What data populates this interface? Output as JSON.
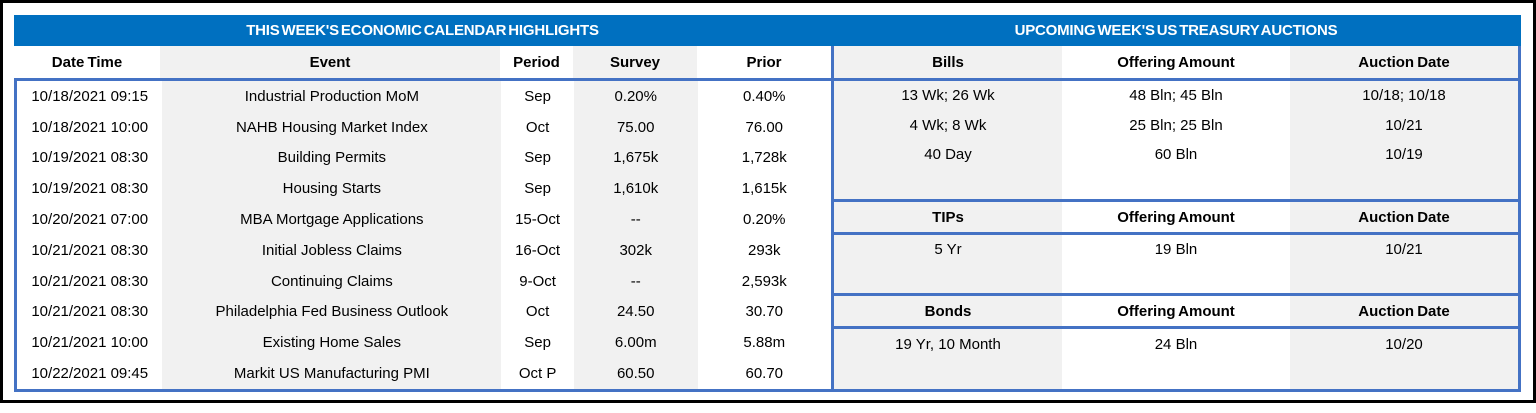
{
  "colors": {
    "title_band": "#0070C0",
    "table_border": "#4472C4",
    "stripe_gray": "#F1F1F1",
    "outer_frame": "#000000"
  },
  "left_table": {
    "title": "THIS WEEK'S ECONOMIC CALENDAR HIGHLIGHTS",
    "columns": [
      "Date Time",
      "Event",
      "Period",
      "Survey",
      "Prior"
    ],
    "rows": [
      {
        "date_time": "10/18/2021 09:15",
        "event": "Industrial Production MoM",
        "period": "Sep",
        "survey": "0.20%",
        "prior": "0.40%"
      },
      {
        "date_time": "10/18/2021 10:00",
        "event": "NAHB Housing Market Index",
        "period": "Oct",
        "survey": "75.00",
        "prior": "76.00"
      },
      {
        "date_time": "10/19/2021 08:30",
        "event": "Building Permits",
        "period": "Sep",
        "survey": "1,675k",
        "prior": "1,728k"
      },
      {
        "date_time": "10/19/2021 08:30",
        "event": "Housing Starts",
        "period": "Sep",
        "survey": "1,610k",
        "prior": "1,615k"
      },
      {
        "date_time": "10/20/2021 07:00",
        "event": "MBA Mortgage Applications",
        "period": "15-Oct",
        "survey": "--",
        "prior": "0.20%"
      },
      {
        "date_time": "10/21/2021 08:30",
        "event": "Initial Jobless Claims",
        "period": "16-Oct",
        "survey": "302k",
        "prior": "293k"
      },
      {
        "date_time": "10/21/2021 08:30",
        "event": "Continuing Claims",
        "period": "9-Oct",
        "survey": "--",
        "prior": "2,593k"
      },
      {
        "date_time": "10/21/2021 08:30",
        "event": "Philadelphia Fed Business Outlook",
        "period": "Oct",
        "survey": "24.50",
        "prior": "30.70"
      },
      {
        "date_time": "10/21/2021 10:00",
        "event": "Existing Home Sales",
        "period": "Sep",
        "survey": "6.00m",
        "prior": "5.88m"
      },
      {
        "date_time": "10/22/2021 09:45",
        "event": "Markit US Manufacturing PMI",
        "period": "Oct P",
        "survey": "60.50",
        "prior": "60.70"
      }
    ]
  },
  "right_table": {
    "title": "UPCOMING WEEK'S US TREASURY AUCTIONS",
    "sections": [
      {
        "headers": [
          "Bills",
          "Offering Amount",
          "Auction Date"
        ],
        "rows": [
          {
            "security": "13 Wk; 26 Wk",
            "offering_amount": "48 Bln; 45 Bln",
            "auction_date": "10/18; 10/18"
          },
          {
            "security": "4 Wk; 8 Wk",
            "offering_amount": "25 Bln; 25 Bln",
            "auction_date": "10/21"
          },
          {
            "security": "40 Day",
            "offering_amount": "60 Bln",
            "auction_date": "10/19"
          },
          {
            "security": "",
            "offering_amount": "",
            "auction_date": ""
          }
        ]
      },
      {
        "headers": [
          "TIPs",
          "Offering Amount",
          "Auction Date"
        ],
        "rows": [
          {
            "security": "5 Yr",
            "offering_amount": "19 Bln",
            "auction_date": "10/21"
          },
          {
            "security": "",
            "offering_amount": "",
            "auction_date": ""
          }
        ]
      },
      {
        "headers": [
          "Bonds",
          "Offering Amount",
          "Auction Date"
        ],
        "rows": [
          {
            "security": "19 Yr, 10 Month",
            "offering_amount": "24 Bln",
            "auction_date": "10/20"
          },
          {
            "security": "",
            "offering_amount": "",
            "auction_date": ""
          }
        ]
      }
    ]
  }
}
